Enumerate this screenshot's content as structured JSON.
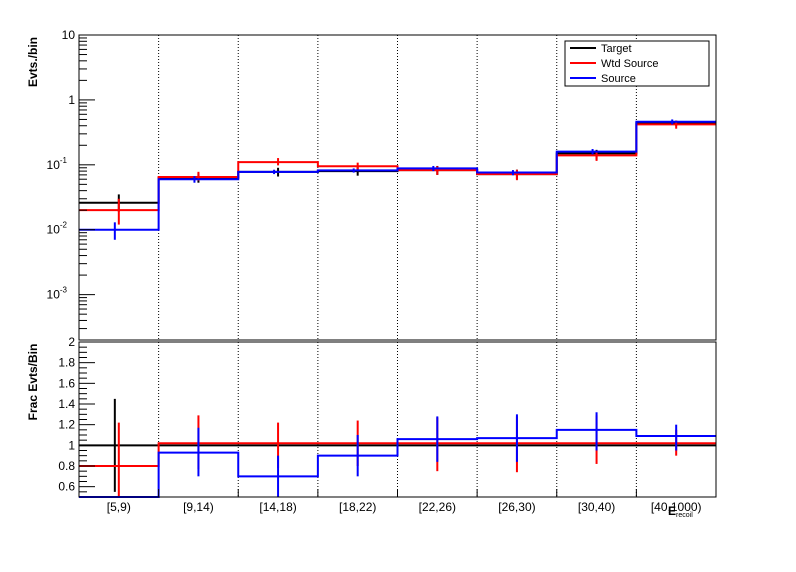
{
  "chart_data": [
    {
      "type": "line",
      "subtype": "step-histogram",
      "title": "",
      "xlabel": "",
      "ylabel": "Evts./bin",
      "yscale": "log",
      "ylim": [
        0.0002,
        10
      ],
      "y_ticks": [
        {
          "value": 0.001,
          "base": "10",
          "exp": "-3"
        },
        {
          "value": 0.01,
          "base": "10",
          "exp": "-2"
        },
        {
          "value": 0.1,
          "base": "10",
          "exp": "-1"
        },
        {
          "value": 1,
          "label": "1"
        },
        {
          "value": 10,
          "label": "10"
        }
      ],
      "categories": [
        "[5,9)",
        "[9,14)",
        "[14,18)",
        "[18,22)",
        "[22,26)",
        "[26,30)",
        "[30,40)",
        "[40,1000)"
      ],
      "grid": "vertical dotted at bin edges",
      "legend_position": "top-right",
      "series": [
        {
          "name": "Target",
          "color": "#000000",
          "width": 2,
          "values": [
            0.026,
            0.063,
            0.078,
            0.08,
            0.083,
            0.072,
            0.15,
            0.44
          ],
          "err_low": [
            0.019,
            0.053,
            0.066,
            0.068,
            0.07,
            0.06,
            0.12,
            0.4
          ],
          "err_high": [
            0.035,
            0.074,
            0.09,
            0.092,
            0.096,
            0.084,
            0.17,
            0.48
          ],
          "err_offset": 0.5
        },
        {
          "name": "Wtd Source",
          "color": "#ff0000",
          "width": 2,
          "values": [
            0.02,
            0.065,
            0.11,
            0.095,
            0.083,
            0.072,
            0.14,
            0.42
          ],
          "err_low": [
            0.012,
            0.057,
            0.098,
            0.085,
            0.07,
            0.058,
            0.115,
            0.36
          ],
          "err_high": [
            0.03,
            0.078,
            0.127,
            0.108,
            0.095,
            0.084,
            0.165,
            0.48
          ],
          "err_offset": 0.5
        },
        {
          "name": "Source",
          "color": "#0000ff",
          "width": 2,
          "values": [
            0.01,
            0.06,
            0.078,
            0.082,
            0.088,
            0.076,
            0.16,
            0.46
          ],
          "err_low": [
            0.007,
            0.053,
            0.072,
            0.076,
            0.08,
            0.069,
            0.145,
            0.42
          ],
          "err_high": [
            0.013,
            0.067,
            0.084,
            0.088,
            0.096,
            0.083,
            0.175,
            0.5
          ],
          "err_offset": 0.45
        }
      ]
    },
    {
      "type": "line",
      "subtype": "step-histogram",
      "title": "",
      "xlabel": "E",
      "xlabel_suffix": "recoil",
      "ylabel": "Frac Evts/Bin",
      "yscale": "linear",
      "ylim": [
        0.5,
        2.0
      ],
      "y_major_ticks": [
        {
          "value": 0.6,
          "label": "0.6"
        },
        {
          "value": 0.8,
          "label": "0.8"
        },
        {
          "value": 1.0,
          "label": "1"
        },
        {
          "value": 1.2,
          "label": "1.2"
        },
        {
          "value": 1.4,
          "label": "1.4"
        },
        {
          "value": 1.6,
          "label": "1.6"
        },
        {
          "value": 1.8,
          "label": "1.8"
        },
        {
          "value": 2.0,
          "label": "2"
        }
      ],
      "categories": [
        "[5,9)",
        "[9,14)",
        "[14,18)",
        "[18,22)",
        "[22,26)",
        "[26,30)",
        "[30,40)",
        "[40,1000)"
      ],
      "grid": "vertical dotted at bin edges",
      "series": [
        {
          "name": "Target",
          "color": "#000000",
          "width": 2,
          "values": [
            1,
            1,
            1,
            1,
            1,
            1,
            1,
            1
          ],
          "err_low": [
            0.55,
            1,
            1,
            1,
            1,
            1,
            1,
            1
          ],
          "err_high": [
            1.45,
            1,
            1,
            1,
            1,
            1,
            1,
            1
          ],
          "err_offset": 0.45
        },
        {
          "name": "Wtd Source",
          "color": "#ff0000",
          "width": 2,
          "values": [
            0.8,
            1.02,
            1.02,
            1.02,
            1.02,
            1.02,
            1.02,
            1.02
          ],
          "err_low": [
            0.5,
            0.77,
            0.78,
            0.8,
            0.75,
            0.74,
            0.82,
            0.9
          ],
          "err_high": [
            1.22,
            1.29,
            1.22,
            1.24,
            1.27,
            1.28,
            1.29,
            1.15
          ],
          "err_offset": 0.5
        },
        {
          "name": "Source",
          "color": "#0000ff",
          "width": 2,
          "values": [
            0.5,
            0.93,
            0.7,
            0.9,
            1.06,
            1.07,
            1.15,
            1.09
          ],
          "err_low": [
            0.5,
            0.7,
            0.5,
            0.7,
            0.84,
            0.84,
            0.95,
            0.95
          ],
          "err_high": [
            0.5,
            1.17,
            0.9,
            1.1,
            1.28,
            1.3,
            1.32,
            1.2
          ],
          "err_offset": 0.5
        }
      ]
    }
  ]
}
